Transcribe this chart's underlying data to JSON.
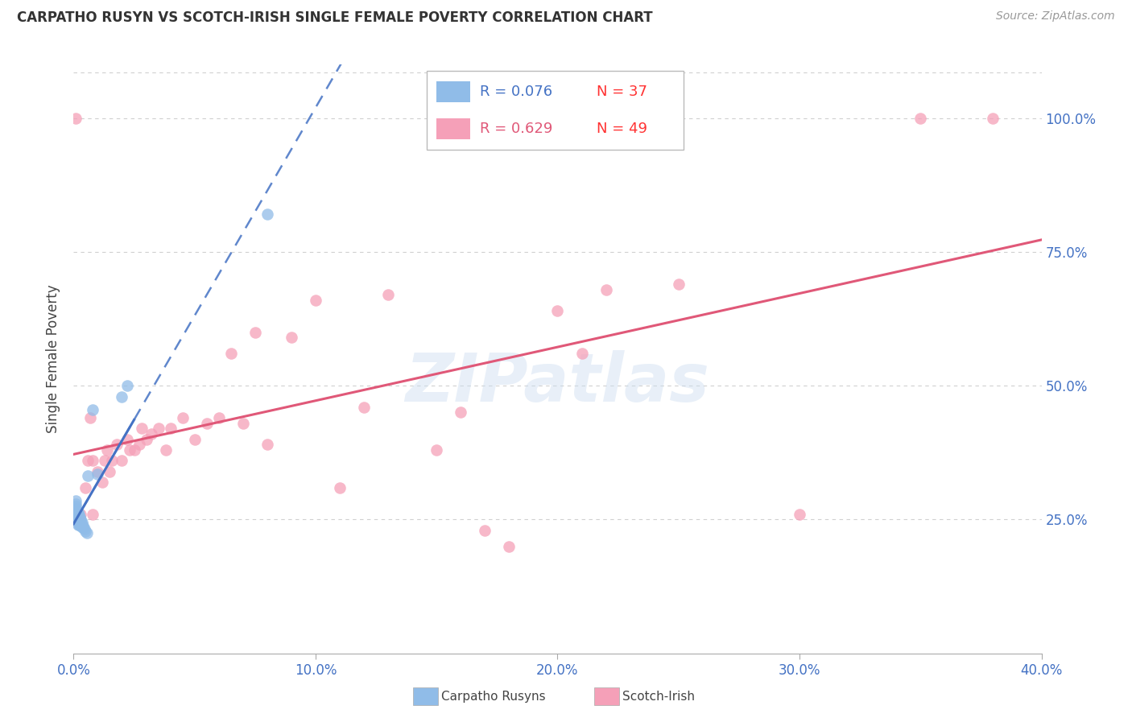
{
  "title": "CARPATHO RUSYN VS SCOTCH-IRISH SINGLE FEMALE POVERTY CORRELATION CHART",
  "source": "Source: ZipAtlas.com",
  "ylabel": "Single Female Poverty",
  "xlim": [
    0.0,
    0.4
  ],
  "ylim": [
    0.0,
    1.1
  ],
  "yticks_right": [
    0.25,
    0.5,
    0.75,
    1.0
  ],
  "ytick_labels_right": [
    "25.0%",
    "50.0%",
    "75.0%",
    "100.0%"
  ],
  "xticks": [
    0.0,
    0.1,
    0.2,
    0.3,
    0.4
  ],
  "xtick_labels": [
    "0.0%",
    "10.0%",
    "20.0%",
    "30.0%",
    "40.0%"
  ],
  "grid_color": "#d0d0d0",
  "background_color": "#ffffff",
  "carpatho_color": "#90bce8",
  "scotch_color": "#f5a0b8",
  "carpatho_line_color": "#4472c4",
  "scotch_line_color": "#e05878",
  "R_carpatho": 0.076,
  "N_carpatho": 37,
  "R_scotch": 0.629,
  "N_scotch": 49,
  "legend_label_carpatho": "Carpatho Rusyns",
  "legend_label_scotch": "Scotch-Irish",
  "watermark": "ZIPatlas",
  "carpatho_x": [
    0.0008,
    0.0008,
    0.001,
    0.001,
    0.001,
    0.0012,
    0.0012,
    0.0015,
    0.0015,
    0.0018,
    0.0018,
    0.0018,
    0.002,
    0.002,
    0.0022,
    0.0022,
    0.0022,
    0.0025,
    0.0025,
    0.0028,
    0.0028,
    0.003,
    0.003,
    0.0032,
    0.0035,
    0.0035,
    0.0038,
    0.004,
    0.0045,
    0.005,
    0.0055,
    0.006,
    0.008,
    0.01,
    0.02,
    0.022,
    0.08
  ],
  "carpatho_y": [
    0.275,
    0.285,
    0.26,
    0.27,
    0.28,
    0.255,
    0.265,
    0.25,
    0.26,
    0.245,
    0.255,
    0.265,
    0.24,
    0.25,
    0.24,
    0.25,
    0.26,
    0.245,
    0.255,
    0.24,
    0.25,
    0.238,
    0.248,
    0.238,
    0.235,
    0.245,
    0.238,
    0.235,
    0.232,
    0.228,
    0.225,
    0.332,
    0.455,
    0.335,
    0.48,
    0.5,
    0.82
  ],
  "scotch_x": [
    0.001,
    0.003,
    0.005,
    0.006,
    0.007,
    0.008,
    0.008,
    0.01,
    0.012,
    0.013,
    0.014,
    0.015,
    0.016,
    0.018,
    0.02,
    0.022,
    0.023,
    0.025,
    0.027,
    0.028,
    0.03,
    0.032,
    0.035,
    0.038,
    0.04,
    0.045,
    0.05,
    0.055,
    0.06,
    0.065,
    0.07,
    0.075,
    0.08,
    0.09,
    0.1,
    0.11,
    0.12,
    0.13,
    0.15,
    0.16,
    0.17,
    0.18,
    0.2,
    0.21,
    0.22,
    0.25,
    0.3,
    0.35,
    0.38
  ],
  "scotch_y": [
    1.0,
    0.26,
    0.31,
    0.36,
    0.44,
    0.26,
    0.36,
    0.34,
    0.32,
    0.36,
    0.38,
    0.34,
    0.36,
    0.39,
    0.36,
    0.4,
    0.38,
    0.38,
    0.39,
    0.42,
    0.4,
    0.41,
    0.42,
    0.38,
    0.42,
    0.44,
    0.4,
    0.43,
    0.44,
    0.56,
    0.43,
    0.6,
    0.39,
    0.59,
    0.66,
    0.31,
    0.46,
    0.67,
    0.38,
    0.45,
    0.23,
    0.2,
    0.64,
    0.56,
    0.68,
    0.69,
    0.26,
    1.0,
    1.0
  ]
}
